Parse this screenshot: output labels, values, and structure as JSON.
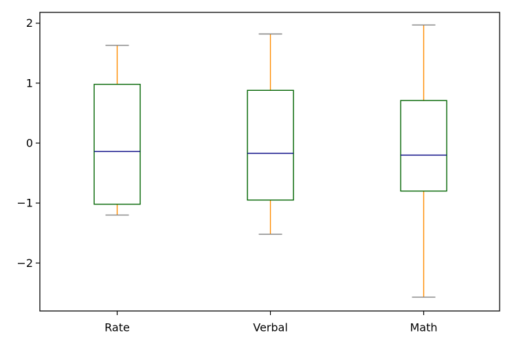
{
  "chart_data": {
    "type": "box",
    "title": "",
    "xlabel": "",
    "ylabel": "",
    "ylim": [
      -2.8,
      2.18
    ],
    "yticks": [
      2,
      1,
      0,
      -1,
      -2
    ],
    "ytick_labels": [
      "2",
      "1",
      "0",
      "−1",
      "−2"
    ],
    "grid": false,
    "categories": [
      "Rate",
      "Verbal",
      "Math"
    ],
    "boxes": [
      {
        "label": "Rate",
        "whislo": -1.2,
        "q1": -1.02,
        "med": -0.14,
        "q3": 0.98,
        "whishi": 1.63
      },
      {
        "label": "Verbal",
        "whislo": -1.52,
        "q1": -0.95,
        "med": -0.17,
        "q3": 0.88,
        "whishi": 1.82
      },
      {
        "label": "Math",
        "whislo": -2.57,
        "q1": -0.8,
        "med": -0.2,
        "q3": 0.71,
        "whishi": 1.97
      }
    ],
    "colors": {
      "box": "#006400",
      "median": "#000080",
      "whisker": "#ff8c00",
      "cap": "#808080",
      "axis": "#000000"
    }
  }
}
